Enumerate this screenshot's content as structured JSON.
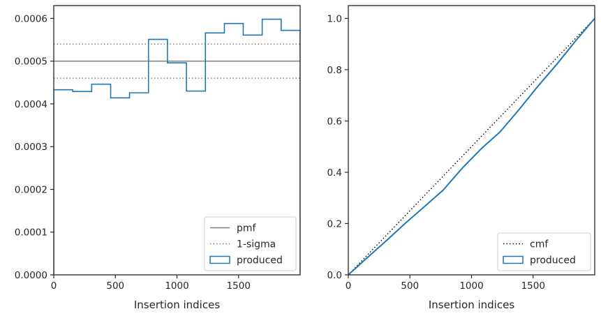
{
  "chart_data": [
    {
      "type": "histogram",
      "xlabel": "Insertion indices",
      "ylabel": "",
      "xlim": [
        0,
        2000
      ],
      "ylim": [
        0,
        0.00063
      ],
      "xticks": [
        0,
        500,
        1000,
        1500
      ],
      "xtick_labels": [
        "0",
        "500",
        "1000",
        "1500"
      ],
      "yticks": [
        0,
        0.0001,
        0.0002,
        0.0003,
        0.0004,
        0.0005,
        0.0006
      ],
      "ytick_labels": [
        "0.0000",
        "0.0001",
        "0.0002",
        "0.0003",
        "0.0004",
        "0.0005",
        "0.0006"
      ],
      "reference_lines": [
        {
          "name": "pmf",
          "y": 0.0005,
          "style": "solid",
          "color": "#7f7f7f"
        },
        {
          "name": "1-sigma",
          "y": 0.00054,
          "style": "dotted",
          "color": "#7f7f7f"
        },
        {
          "name": "1-sigma",
          "y": 0.00046,
          "style": "dotted",
          "color": "#7f7f7f"
        }
      ],
      "series": [
        {
          "name": "produced",
          "color": "#1f77b4",
          "bin_edges": [
            0,
            154,
            308,
            462,
            615,
            769,
            923,
            1077,
            1231,
            1385,
            1538,
            1692,
            1846,
            2000
          ],
          "values": [
            0.000433,
            0.000429,
            0.000446,
            0.000414,
            0.000426,
            0.000551,
            0.000496,
            0.00043,
            0.000566,
            0.000588,
            0.000561,
            0.000598,
            0.000572
          ]
        }
      ],
      "legend": {
        "placement": "lower-right",
        "entries": [
          "pmf",
          "1-sigma",
          "produced"
        ]
      },
      "grid": false
    },
    {
      "type": "line",
      "xlabel": "Insertion indices",
      "ylabel": "",
      "xlim": [
        0,
        2000
      ],
      "ylim": [
        0,
        1.05
      ],
      "xticks": [
        0,
        500,
        1000,
        1500
      ],
      "xtick_labels": [
        "0",
        "500",
        "1000",
        "1500"
      ],
      "yticks": [
        0,
        0.2,
        0.4,
        0.6,
        0.8,
        1.0
      ],
      "ytick_labels": [
        "0.0",
        "0.2",
        "0.4",
        "0.6",
        "0.8",
        "1.0"
      ],
      "series": [
        {
          "name": "cmf",
          "style": "dotted",
          "color": "#000000",
          "x": [
            0,
            2000
          ],
          "y": [
            0,
            1.0
          ]
        },
        {
          "name": "produced",
          "style": "step",
          "color": "#1f77b4",
          "x": [
            0,
            154,
            308,
            462,
            615,
            769,
            923,
            1077,
            1231,
            1385,
            1538,
            1692,
            1846,
            2000
          ],
          "y": [
            0,
            0.067,
            0.133,
            0.201,
            0.265,
            0.33,
            0.415,
            0.491,
            0.557,
            0.644,
            0.735,
            0.821,
            0.913,
            1.0
          ]
        }
      ],
      "legend": {
        "placement": "lower-right",
        "entries": [
          "cmf",
          "produced"
        ]
      },
      "grid": false
    }
  ]
}
